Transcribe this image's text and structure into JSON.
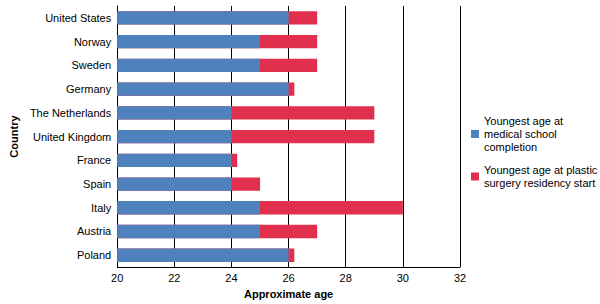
{
  "chart_data": {
    "type": "bar",
    "orientation": "horizontal",
    "stacked": false,
    "categories": [
      "United States",
      "Norway",
      "Sweden",
      "Germany",
      "The Netherlands",
      "United Kingdom",
      "France",
      "Spain",
      "Italy",
      "Austria",
      "Poland"
    ],
    "series": [
      {
        "name": "Youngest age at medical school completion",
        "color": "#4f81bd",
        "values": [
          26,
          25,
          25,
          26,
          24,
          24,
          24,
          24,
          25,
          25,
          26
        ]
      },
      {
        "name": "Youngest age at plastic surgery residency start",
        "color": "#e0304d",
        "values": [
          27,
          27,
          27,
          26.2,
          29,
          29,
          24.2,
          25,
          30,
          27,
          26.2
        ]
      }
    ],
    "xlabel": "Approximate age",
    "ylabel": "Country",
    "xlim": [
      20,
      32
    ],
    "xticks": [
      20,
      22,
      24,
      26,
      28,
      30,
      32
    ],
    "grid": true,
    "legend": "right"
  }
}
